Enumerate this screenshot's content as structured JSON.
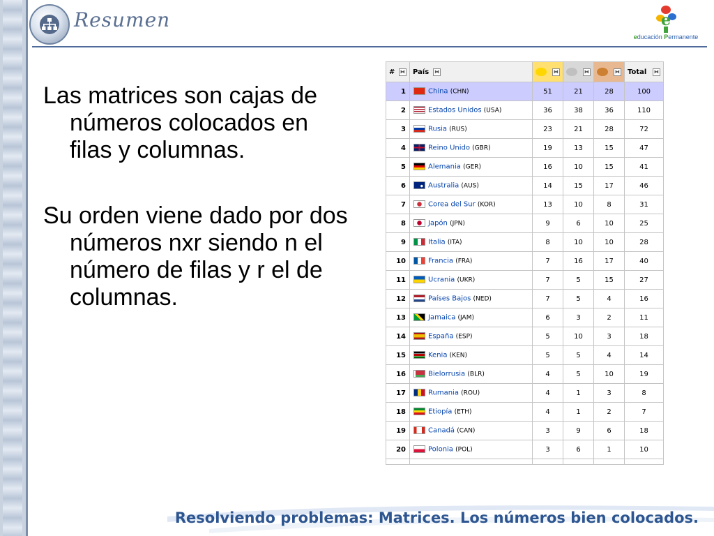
{
  "header": {
    "title": "Resumen",
    "brand": {
      "initial": "e",
      "word1": "ducación",
      "initial2": "P",
      "word2": "ermanente"
    }
  },
  "body": {
    "paragraphs": [
      "Las matrices son cajas de números colocados en filas y columnas.",
      "Su orden viene dado por dos números nxr siendo n el número de filas y r el de columnas."
    ]
  },
  "table": {
    "headers": {
      "rank": "#",
      "country": "País",
      "total": "Total"
    },
    "sort_icon": "⧓",
    "colors": {
      "gold": "#ffcc00",
      "silver": "#c8c8c8",
      "bronze": "#cc7a33",
      "highlight": "#ccccff"
    },
    "rows": [
      {
        "rank": "1",
        "country": "China",
        "code": "(CHN)",
        "gold": "51",
        "silver": "21",
        "bronze": "28",
        "total": "100",
        "flag": "china"
      },
      {
        "rank": "2",
        "country": "Estados Unidos",
        "code": "(USA)",
        "gold": "36",
        "silver": "38",
        "bronze": "36",
        "total": "110",
        "flag": "usa"
      },
      {
        "rank": "3",
        "country": "Rusia",
        "code": "(RUS)",
        "gold": "23",
        "silver": "21",
        "bronze": "28",
        "total": "72",
        "flag": "russia"
      },
      {
        "rank": "4",
        "country": "Reino Unido",
        "code": "(GBR)",
        "gold": "19",
        "silver": "13",
        "bronze": "15",
        "total": "47",
        "flag": "uk"
      },
      {
        "rank": "5",
        "country": "Alemania",
        "code": "(GER)",
        "gold": "16",
        "silver": "10",
        "bronze": "15",
        "total": "41",
        "flag": "germany"
      },
      {
        "rank": "6",
        "country": "Australia",
        "code": "(AUS)",
        "gold": "14",
        "silver": "15",
        "bronze": "17",
        "total": "46",
        "flag": "australia"
      },
      {
        "rank": "7",
        "country": "Corea del Sur",
        "code": "(KOR)",
        "gold": "13",
        "silver": "10",
        "bronze": "8",
        "total": "31",
        "flag": "korea"
      },
      {
        "rank": "8",
        "country": "Japón",
        "code": "(JPN)",
        "gold": "9",
        "silver": "6",
        "bronze": "10",
        "total": "25",
        "flag": "japan"
      },
      {
        "rank": "9",
        "country": "Italia",
        "code": "(ITA)",
        "gold": "8",
        "silver": "10",
        "bronze": "10",
        "total": "28",
        "flag": "italy"
      },
      {
        "rank": "10",
        "country": "Francia",
        "code": "(FRA)",
        "gold": "7",
        "silver": "16",
        "bronze": "17",
        "total": "40",
        "flag": "france"
      },
      {
        "rank": "11",
        "country": "Ucrania",
        "code": "(UKR)",
        "gold": "7",
        "silver": "5",
        "bronze": "15",
        "total": "27",
        "flag": "ukraine"
      },
      {
        "rank": "12",
        "country": "Países Bajos",
        "code": "(NED)",
        "gold": "7",
        "silver": "5",
        "bronze": "4",
        "total": "16",
        "flag": "netherlands"
      },
      {
        "rank": "13",
        "country": "Jamaica",
        "code": "(JAM)",
        "gold": "6",
        "silver": "3",
        "bronze": "2",
        "total": "11",
        "flag": "jamaica"
      },
      {
        "rank": "14",
        "country": "España",
        "code": "(ESP)",
        "gold": "5",
        "silver": "10",
        "bronze": "3",
        "total": "18",
        "flag": "spain"
      },
      {
        "rank": "15",
        "country": "Kenia",
        "code": "(KEN)",
        "gold": "5",
        "silver": "5",
        "bronze": "4",
        "total": "14",
        "flag": "kenya"
      },
      {
        "rank": "16",
        "country": "Bielorrusia",
        "code": "(BLR)",
        "gold": "4",
        "silver": "5",
        "bronze": "10",
        "total": "19",
        "flag": "belarus"
      },
      {
        "rank": "17",
        "country": "Rumania",
        "code": "(ROU)",
        "gold": "4",
        "silver": "1",
        "bronze": "3",
        "total": "8",
        "flag": "romania"
      },
      {
        "rank": "18",
        "country": "Etiopía",
        "code": "(ETH)",
        "gold": "4",
        "silver": "1",
        "bronze": "2",
        "total": "7",
        "flag": "ethiopia"
      },
      {
        "rank": "19",
        "country": "Canadá",
        "code": "(CAN)",
        "gold": "3",
        "silver": "9",
        "bronze": "6",
        "total": "18",
        "flag": "canada"
      },
      {
        "rank": "20",
        "country": "Polonia",
        "code": "(POL)",
        "gold": "3",
        "silver": "6",
        "bronze": "1",
        "total": "10",
        "flag": "poland"
      }
    ]
  },
  "footer": {
    "text": "Resolviendo problemas: Matrices. Los números bien colocados."
  }
}
